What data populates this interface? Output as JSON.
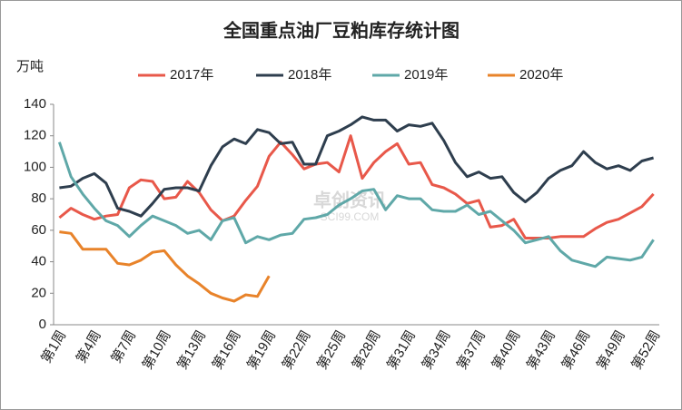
{
  "chart_data": {
    "type": "line",
    "title": "全国重点油厂豆粕库存统计图",
    "y_label": "万吨",
    "watermark": [
      "卓创资讯",
      "SCI99.COM"
    ],
    "categories": [
      "第1周",
      null,
      null,
      "第4周",
      null,
      null,
      "第7周",
      null,
      null,
      "第10周",
      null,
      null,
      "第13周",
      null,
      null,
      "第16周",
      null,
      null,
      "第19周",
      null,
      null,
      "第22周",
      null,
      null,
      "第25周",
      null,
      null,
      "第28周",
      null,
      null,
      "第31周",
      null,
      null,
      "第34周",
      null,
      null,
      "第37周",
      null,
      null,
      "第40周",
      null,
      null,
      "第43周",
      null,
      null,
      "第46周",
      null,
      null,
      "第49周",
      null,
      null,
      "第52周"
    ],
    "series": [
      {
        "name": "2017年",
        "color": "#e8584a",
        "values": [
          68,
          74,
          70,
          67,
          69,
          70,
          87,
          92,
          91,
          80,
          81,
          91,
          84,
          73,
          66,
          69,
          79,
          88,
          107,
          116,
          108,
          99,
          102,
          103,
          97,
          120,
          93,
          103,
          110,
          115,
          102,
          103,
          89,
          87,
          83,
          77,
          79,
          62,
          63,
          67,
          55,
          55,
          55,
          56,
          56,
          56,
          61,
          65,
          67,
          71,
          75,
          83
        ]
      },
      {
        "name": "2018年",
        "color": "#2e3e4e",
        "values": [
          87,
          88,
          93,
          96,
          90,
          74,
          72,
          69,
          77,
          86,
          87,
          87,
          85,
          101,
          113,
          118,
          115,
          124,
          122,
          115,
          116,
          102,
          102,
          120,
          123,
          127,
          132,
          130,
          130,
          123,
          127,
          126,
          128,
          117,
          103,
          94,
          97,
          93,
          94,
          84,
          78,
          84,
          93,
          98,
          101,
          110,
          103,
          99,
          101,
          98,
          104,
          106
        ]
      },
      {
        "name": "2019年",
        "color": "#5fa8a8",
        "values": [
          116,
          94,
          83,
          74,
          66,
          63,
          56,
          63,
          69,
          66,
          63,
          58,
          60,
          54,
          66,
          68,
          52,
          56,
          54,
          57,
          58,
          67,
          68,
          70,
          76,
          80,
          85,
          86,
          73,
          82,
          80,
          80,
          73,
          72,
          72,
          76,
          70,
          72,
          66,
          60,
          52,
          54,
          56,
          47,
          41,
          39,
          37,
          43,
          42,
          41,
          43,
          54
        ]
      },
      {
        "name": "2020年",
        "color": "#e8832a",
        "values": [
          59,
          58,
          48,
          48,
          48,
          39,
          38,
          41,
          46,
          47,
          38,
          31,
          26,
          20,
          17,
          15,
          19,
          18,
          31,
          null,
          null,
          null,
          null,
          null,
          null,
          null,
          null,
          null,
          null,
          null,
          null,
          null,
          null,
          null,
          null,
          null,
          null,
          null,
          null,
          null,
          null,
          null,
          null,
          null,
          null,
          null,
          null,
          null,
          null,
          null,
          null,
          null
        ]
      }
    ],
    "ylim": [
      0,
      140
    ],
    "yticks": [
      0,
      20,
      40,
      60,
      80,
      100,
      120,
      140
    ],
    "legend": "top"
  }
}
